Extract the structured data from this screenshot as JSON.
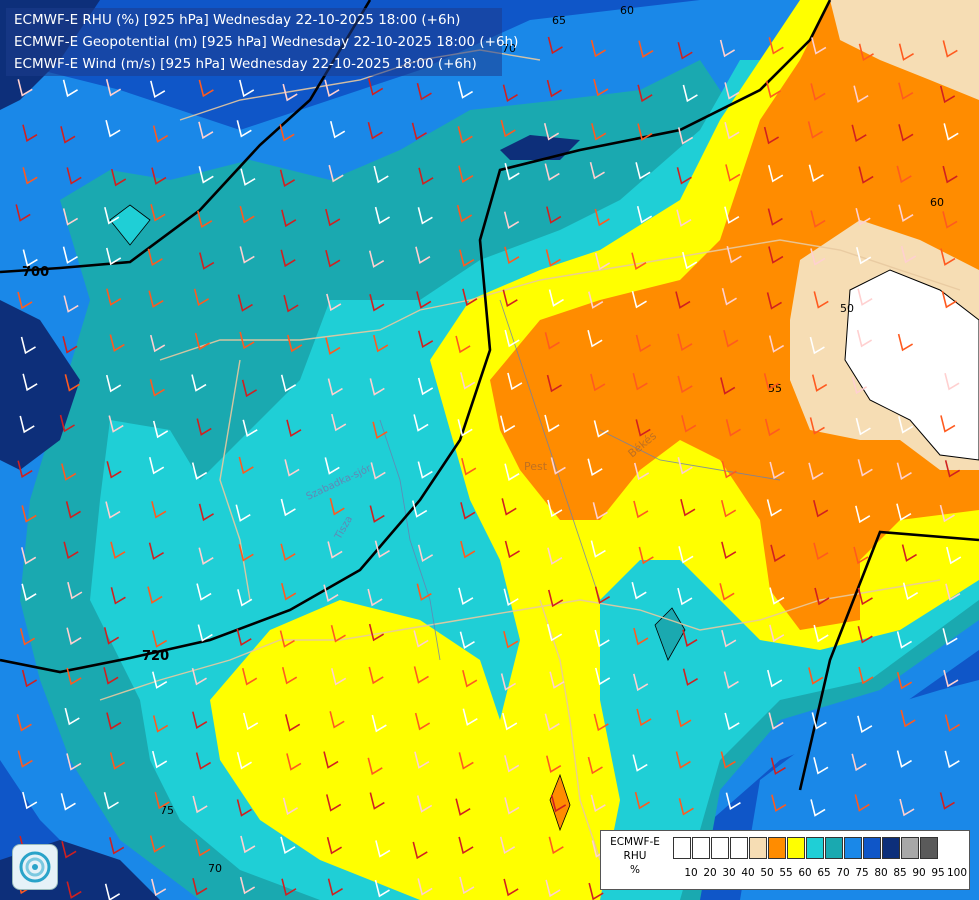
{
  "header": {
    "line1": "ECMWF-E RHU (%) [925 hPa] Wednesday 22-10-2025 18:00 (+6h)",
    "line2": "ECMWF-E Geopotential (m) [925 hPa] Wednesday 22-10-2025 18:00 (+6h)",
    "line3": "ECMWF-E Wind (m/s) [925 hPa] Wednesday 22-10-2025 18:00 (+6h)"
  },
  "contour_labels": {
    "geo_700": "700",
    "geo_720": "720",
    "rhu_65": "65",
    "rhu_60_top": "60",
    "rhu_70": "70",
    "rhu_60_right": "60",
    "rhu_50": "50",
    "rhu_55": "55",
    "rhu_75": "75",
    "rhu_70_bottom": "70"
  },
  "place_labels": {
    "pest": "Pest",
    "bekes": "Békés",
    "tisza": "Tisza",
    "szabadka": "Szabadka-sjór"
  },
  "legend": {
    "title": "ECMWF-E",
    "subtitle": "RHU",
    "unit": "%",
    "swatches": [
      {
        "color": "#ffffff"
      },
      {
        "color": "#ffffff"
      },
      {
        "color": "#ffffff"
      },
      {
        "color": "#ffffff"
      },
      {
        "color": "#f6ddb4"
      },
      {
        "color": "#ff8c00"
      },
      {
        "color": "#ffff00"
      },
      {
        "color": "#1fcfd6"
      },
      {
        "color": "#1aa9b0"
      },
      {
        "color": "#1a88e8"
      },
      {
        "color": "#0f56c8"
      },
      {
        "color": "#0d2f7a"
      },
      {
        "color": "#a8a8a8"
      },
      {
        "color": "#5a5a5a"
      }
    ],
    "ticks": [
      "10",
      "20",
      "30",
      "40",
      "50",
      "55",
      "60",
      "65",
      "70",
      "75",
      "80",
      "85",
      "90",
      "95",
      "100"
    ]
  },
  "colors": {
    "rh_95": "#0a1e56",
    "rh_90": "#0d2f7a",
    "rh_85": "#0f56c8",
    "rh_80": "#1a88e8",
    "rh_75": "#1aa9b0",
    "rh_70": "#1fcfd6",
    "rh_65": "#ffff00",
    "rh_60": "#ff8c00",
    "rh_55": "#f6ddb4",
    "rh_50": "#ffffff"
  }
}
